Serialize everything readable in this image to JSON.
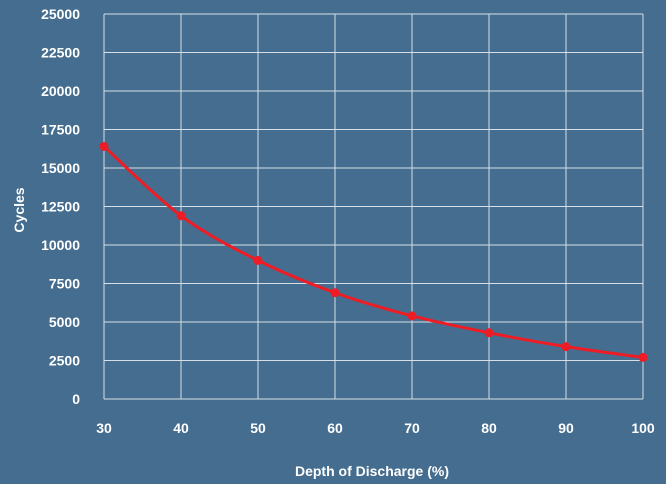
{
  "chart_data": {
    "type": "line",
    "title": "",
    "xlabel": "Depth of Discharge (%)",
    "ylabel": "Cycles",
    "x": [
      30,
      40,
      50,
      60,
      70,
      80,
      90,
      100
    ],
    "xticks": [
      "30",
      "40",
      "50",
      "60",
      "70",
      "80",
      "90",
      "100"
    ],
    "yticks": [
      "0",
      "2500",
      "5000",
      "7500",
      "10000",
      "12500",
      "15000",
      "17500",
      "20000",
      "22500",
      "25000"
    ],
    "xlim": [
      30,
      100
    ],
    "ylim": [
      0,
      25000
    ],
    "grid": true,
    "series": [
      {
        "values": [
          16400,
          11900,
          9000,
          6900,
          5400,
          4300,
          3400,
          2700
        ]
      }
    ]
  },
  "colors": {
    "background": "#456d8f",
    "grid": "#d7dee6",
    "series_line": "#ee1c25",
    "text": "#ffffff"
  }
}
